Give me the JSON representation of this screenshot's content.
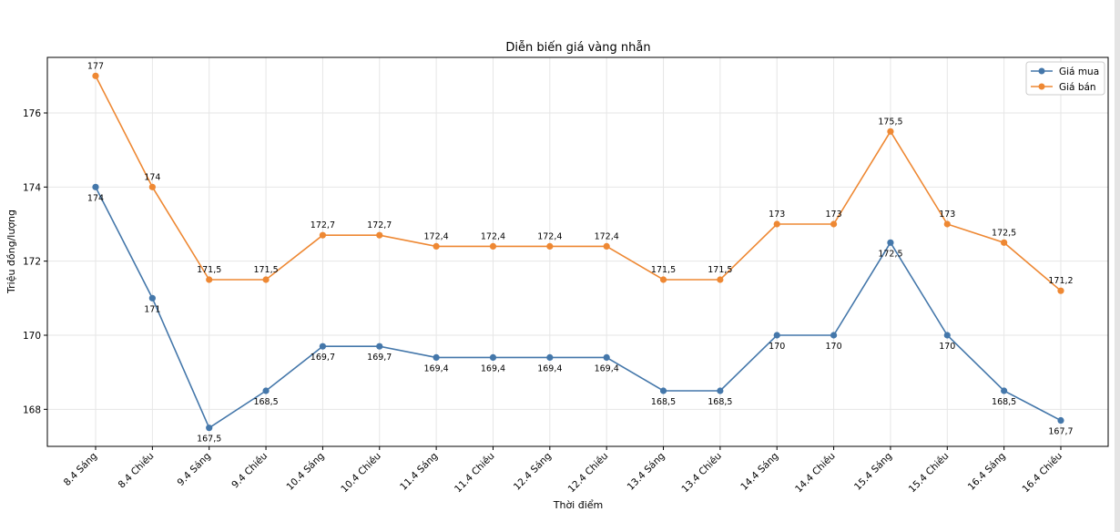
{
  "chart_data": {
    "type": "line",
    "title": "Diễn biến giá vàng nhẫn",
    "xlabel": "Thời điểm",
    "ylabel": "Triệu đồng/lượng",
    "categories": [
      "8.4 Sáng",
      "8.4 Chiều",
      "9.4 Sáng",
      "9.4 Chiều",
      "10.4 Sáng",
      "10.4 Chiều",
      "11.4 Sáng",
      "11.4 Chiều",
      "12.4 Sáng",
      "12.4 Chiều",
      "13.4 Sáng",
      "13.4 Chiều",
      "14.4 Sáng",
      "14.4 Chiều",
      "15.4 Sáng",
      "15.4 Chiều",
      "16.4 Sáng",
      "16.4 Chiều"
    ],
    "ylim": [
      167,
      177.5
    ],
    "yticks": [
      "168",
      "170",
      "172",
      "174",
      "176"
    ],
    "ytick_values": [
      168,
      170,
      172,
      174,
      176
    ],
    "grid": true,
    "legend_position": "top-right",
    "series": [
      {
        "name": "Giá mua",
        "color": "#4477aa",
        "label_position": "below",
        "values": [
          174,
          171,
          167.5,
          168.5,
          169.7,
          169.7,
          169.4,
          169.4,
          169.4,
          169.4,
          168.5,
          168.5,
          170,
          170,
          172.5,
          170,
          168.5,
          167.7
        ],
        "labels": [
          "174",
          "171",
          "167,5",
          "168,5",
          "169,7",
          "169,7",
          "169,4",
          "169,4",
          "169,4",
          "169,4",
          "168,5",
          "168,5",
          "170",
          "170",
          "172,5",
          "170",
          "168,5",
          "167,7"
        ]
      },
      {
        "name": "Giá bán",
        "color": "#ee8833",
        "label_position": "above",
        "values": [
          177,
          174,
          171.5,
          171.5,
          172.7,
          172.7,
          172.4,
          172.4,
          172.4,
          172.4,
          171.5,
          171.5,
          173,
          173,
          175.5,
          173,
          172.5,
          171.2
        ],
        "labels": [
          "177",
          "174",
          "171,5",
          "171,5",
          "172,7",
          "172,7",
          "172,4",
          "172,4",
          "172,4",
          "172,4",
          "171,5",
          "171,5",
          "173",
          "173",
          "175,5",
          "173",
          "172,5",
          "171,2"
        ]
      }
    ]
  }
}
